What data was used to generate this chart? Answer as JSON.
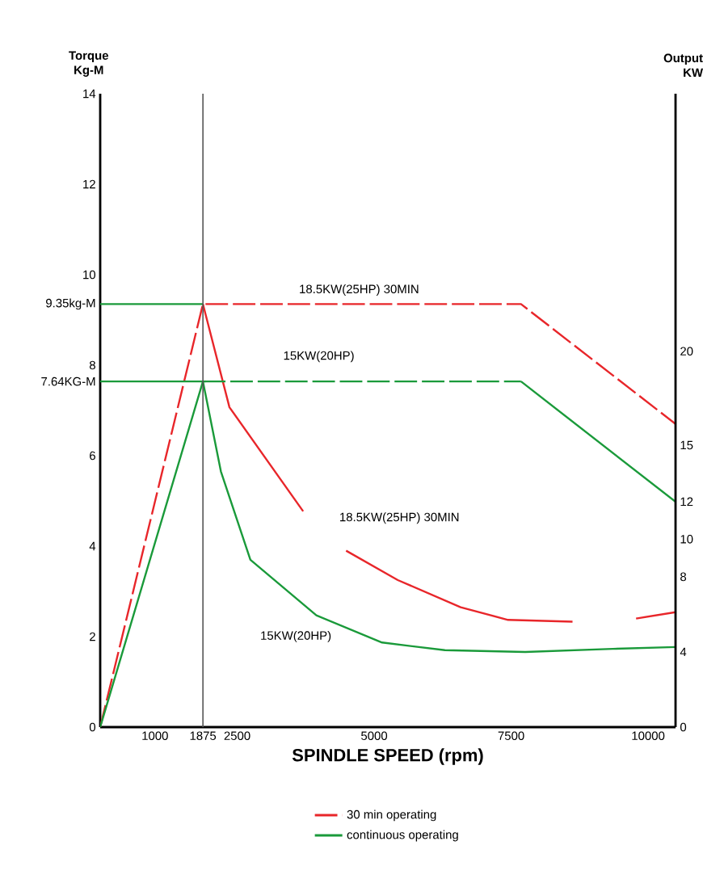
{
  "chart_data": {
    "type": "line",
    "xlabel": "SPINDLE SPEED (rpm)",
    "ylabel": "Torque Kg-M",
    "y2label": "Output KW",
    "xlim": [
      0,
      10500
    ],
    "xticks": [
      1000,
      1875,
      2500,
      5000,
      7500,
      10000
    ],
    "ylim": [
      0,
      14
    ],
    "yticks": [
      0,
      2,
      4,
      6,
      {
        "value": 7.64,
        "label": "7.64KG-M"
      },
      8,
      {
        "value": 9.35,
        "label": "9.35kg-M"
      },
      10,
      12,
      14
    ],
    "y2lim": [
      0,
      33.7
    ],
    "y2ticks": [
      0,
      4,
      8,
      10,
      12,
      15,
      20
    ],
    "legend": "bottom",
    "series": [
      {
        "name": "30 min operating",
        "color": "#e8262a",
        "line_style": "dashed",
        "x": [
          0,
          1875,
          7680,
          10500
        ],
        "values": [
          0,
          9.35,
          9.35,
          6.7
        ]
      },
      {
        "color": "#e8262a",
        "line_style": "solid",
        "x": [
          1875,
          2359,
          3704,
          4100,
          4488,
          5431,
          6578,
          7443,
          8620,
          9200,
          9780,
          10500
        ],
        "values": [
          9.35,
          7.07,
          4.77,
          null,
          3.9,
          3.25,
          2.65,
          2.37,
          2.33,
          null,
          2.4,
          2.54
        ]
      },
      {
        "name": "continuous operating",
        "color": "#1a9a3a",
        "line_style": "solid",
        "x": [
          0,
          1875,
          1969,
          2203,
          2741,
          3945,
          5144,
          6291,
          7756,
          9356,
          10500
        ],
        "values": [
          0,
          7.64,
          7.07,
          5.65,
          3.7,
          2.47,
          1.87,
          1.7,
          1.66,
          1.73,
          1.77
        ]
      },
      {
        "color": "#1a9a3a",
        "line_style": "solid",
        "x": [
          0,
          1875
        ],
        "values": [
          9.35,
          9.35
        ]
      },
      {
        "color": "#1a9a3a",
        "line_style": "solid",
        "x": [
          0,
          1875
        ],
        "values": [
          7.64,
          7.64
        ]
      },
      {
        "color": "#1a9a3a",
        "line_style": "dashed",
        "x": [
          1875,
          7680
        ],
        "values": [
          7.64,
          7.64
        ]
      },
      {
        "color": "#1a9a3a",
        "line_style": "solid",
        "x": [
          7680,
          10500
        ],
        "values": [
          7.64,
          4.98
        ]
      }
    ],
    "ref_lines": [
      {
        "axis": "x",
        "value": 1875,
        "color": "#555555"
      }
    ],
    "annotations": [
      "18.5KW(25HP) 30MIN",
      "15KW(20HP)",
      "18.5KW(25HP) 30MIN",
      "15KW(20HP)"
    ]
  }
}
